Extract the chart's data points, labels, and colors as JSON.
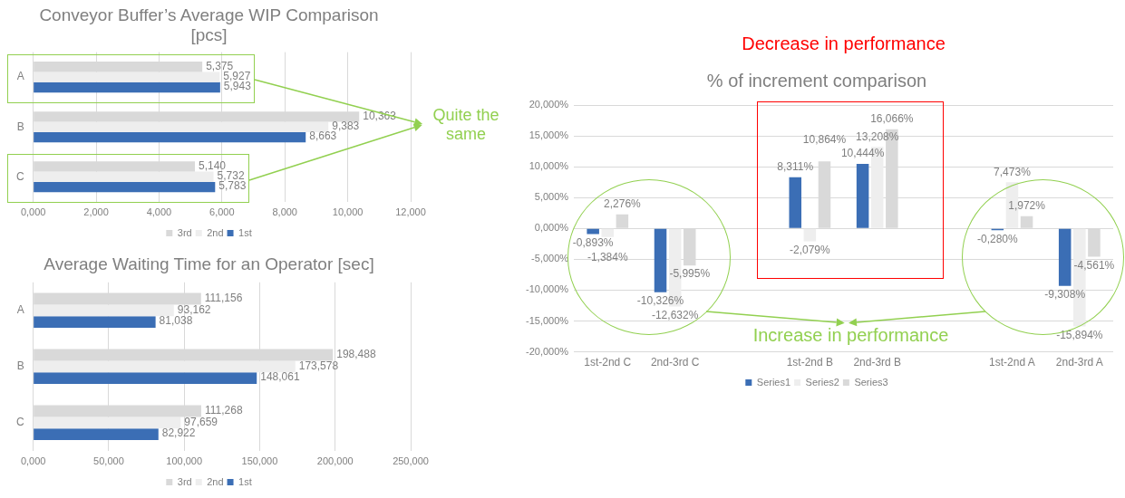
{
  "chart_data": [
    {
      "type": "bar",
      "orientation": "horizontal",
      "title": "Conveyor Buffer’s Average WIP Comparison [pcs]",
      "categories": [
        "A",
        "B",
        "C"
      ],
      "series": [
        {
          "name": "3rd",
          "color": "#d9d9d9",
          "values": [
            5.375,
            10.363,
            5.14
          ],
          "value_labels": [
            "5,375",
            "10,363",
            "5,140"
          ]
        },
        {
          "name": "2nd",
          "color": "#eeeeee",
          "values": [
            5.927,
            9.383,
            5.732
          ],
          "value_labels": [
            "5,927",
            "9,383",
            "5,732"
          ]
        },
        {
          "name": "1st",
          "color": "#3b6eb5",
          "values": [
            5.943,
            8.663,
            5.783
          ],
          "value_labels": [
            "5,943",
            "8,663",
            "5,783"
          ]
        }
      ],
      "xlim": [
        0,
        12
      ],
      "xticks": [
        {
          "value": 0,
          "label": "0,000"
        },
        {
          "value": 2,
          "label": "2,000"
        },
        {
          "value": 4,
          "label": "4,000"
        },
        {
          "value": 6,
          "label": "6,000"
        },
        {
          "value": 8,
          "label": "8,000"
        },
        {
          "value": 10,
          "label": "10,000"
        },
        {
          "value": 12,
          "label": "12,000"
        }
      ],
      "grid": "x",
      "legend": "bottom",
      "annotations": [
        "Quite the same"
      ]
    },
    {
      "type": "bar",
      "orientation": "horizontal",
      "title": "Average Waiting Time for an Operator [sec]",
      "categories": [
        "A",
        "B",
        "C"
      ],
      "series": [
        {
          "name": "3rd",
          "color": "#d9d9d9",
          "values": [
            111.156,
            198.488,
            111.268
          ],
          "value_labels": [
            "111,156",
            "198,488",
            "111,268"
          ]
        },
        {
          "name": "2nd",
          "color": "#eeeeee",
          "values": [
            93.162,
            173.578,
            97.659
          ],
          "value_labels": [
            "93,162",
            "173,578",
            "97,659"
          ]
        },
        {
          "name": "1st",
          "color": "#3b6eb5",
          "values": [
            81.038,
            148.061,
            82.922
          ],
          "value_labels": [
            "81,038",
            "148,061",
            "82,922"
          ]
        }
      ],
      "xlim": [
        0,
        250
      ],
      "xticks": [
        {
          "value": 0,
          "label": "0,000"
        },
        {
          "value": 50,
          "label": "50,000"
        },
        {
          "value": 100,
          "label": "100,000"
        },
        {
          "value": 150,
          "label": "150,000"
        },
        {
          "value": 200,
          "label": "200,000"
        },
        {
          "value": 250,
          "label": "250,000"
        }
      ],
      "grid": "x",
      "legend": "bottom"
    },
    {
      "type": "bar",
      "title": "% of increment comparison",
      "categories": [
        "1st-2nd C",
        "2nd-3rd C",
        null,
        "1st-2nd B",
        "2nd-3rd B",
        null,
        "1st-2nd A",
        "2nd-3rd A"
      ],
      "series": [
        {
          "name": "Series1",
          "color": "#3b6eb5",
          "values": [
            -0.893,
            -10.326,
            null,
            8.311,
            10.444,
            null,
            -0.28,
            -9.308
          ],
          "value_labels": [
            "-0,893%",
            "-10,326%",
            null,
            "8,311%",
            "10,444%",
            null,
            "-0,280%",
            "-9,308%"
          ]
        },
        {
          "name": "Series2",
          "color": "#eeeeee",
          "values": [
            -1.384,
            -12.632,
            null,
            -2.079,
            13.208,
            null,
            7.473,
            -15.894
          ],
          "value_labels": [
            "-1,384%",
            "-12,632%",
            null,
            "-2,079%",
            "13,208%",
            null,
            "7,473%",
            "-15,894%"
          ]
        },
        {
          "name": "Series3",
          "color": "#d9d9d9",
          "values": [
            2.276,
            -5.995,
            null,
            10.864,
            16.066,
            null,
            1.972,
            -4.561
          ],
          "value_labels": [
            "2,276%",
            "-5,995%",
            null,
            "10,864%",
            "16,066%",
            null,
            "1,972%",
            "-4,561%"
          ]
        }
      ],
      "ylim": [
        -20,
        20
      ],
      "yticks": [
        {
          "value": -20,
          "label": "-20,000%"
        },
        {
          "value": -15,
          "label": "-15,000%"
        },
        {
          "value": -10,
          "label": "-10,000%"
        },
        {
          "value": -5,
          "label": "-5,000%"
        },
        {
          "value": 0,
          "label": "0,000%"
        },
        {
          "value": 5,
          "label": "5,000%"
        },
        {
          "value": 10,
          "label": "10,000%"
        },
        {
          "value": 15,
          "label": "15,000%"
        },
        {
          "value": 20,
          "label": "20,000%"
        }
      ],
      "grid": "y",
      "legend": "bottom",
      "annotations": [
        "Decrease in performance",
        "Increase in performance"
      ]
    }
  ]
}
